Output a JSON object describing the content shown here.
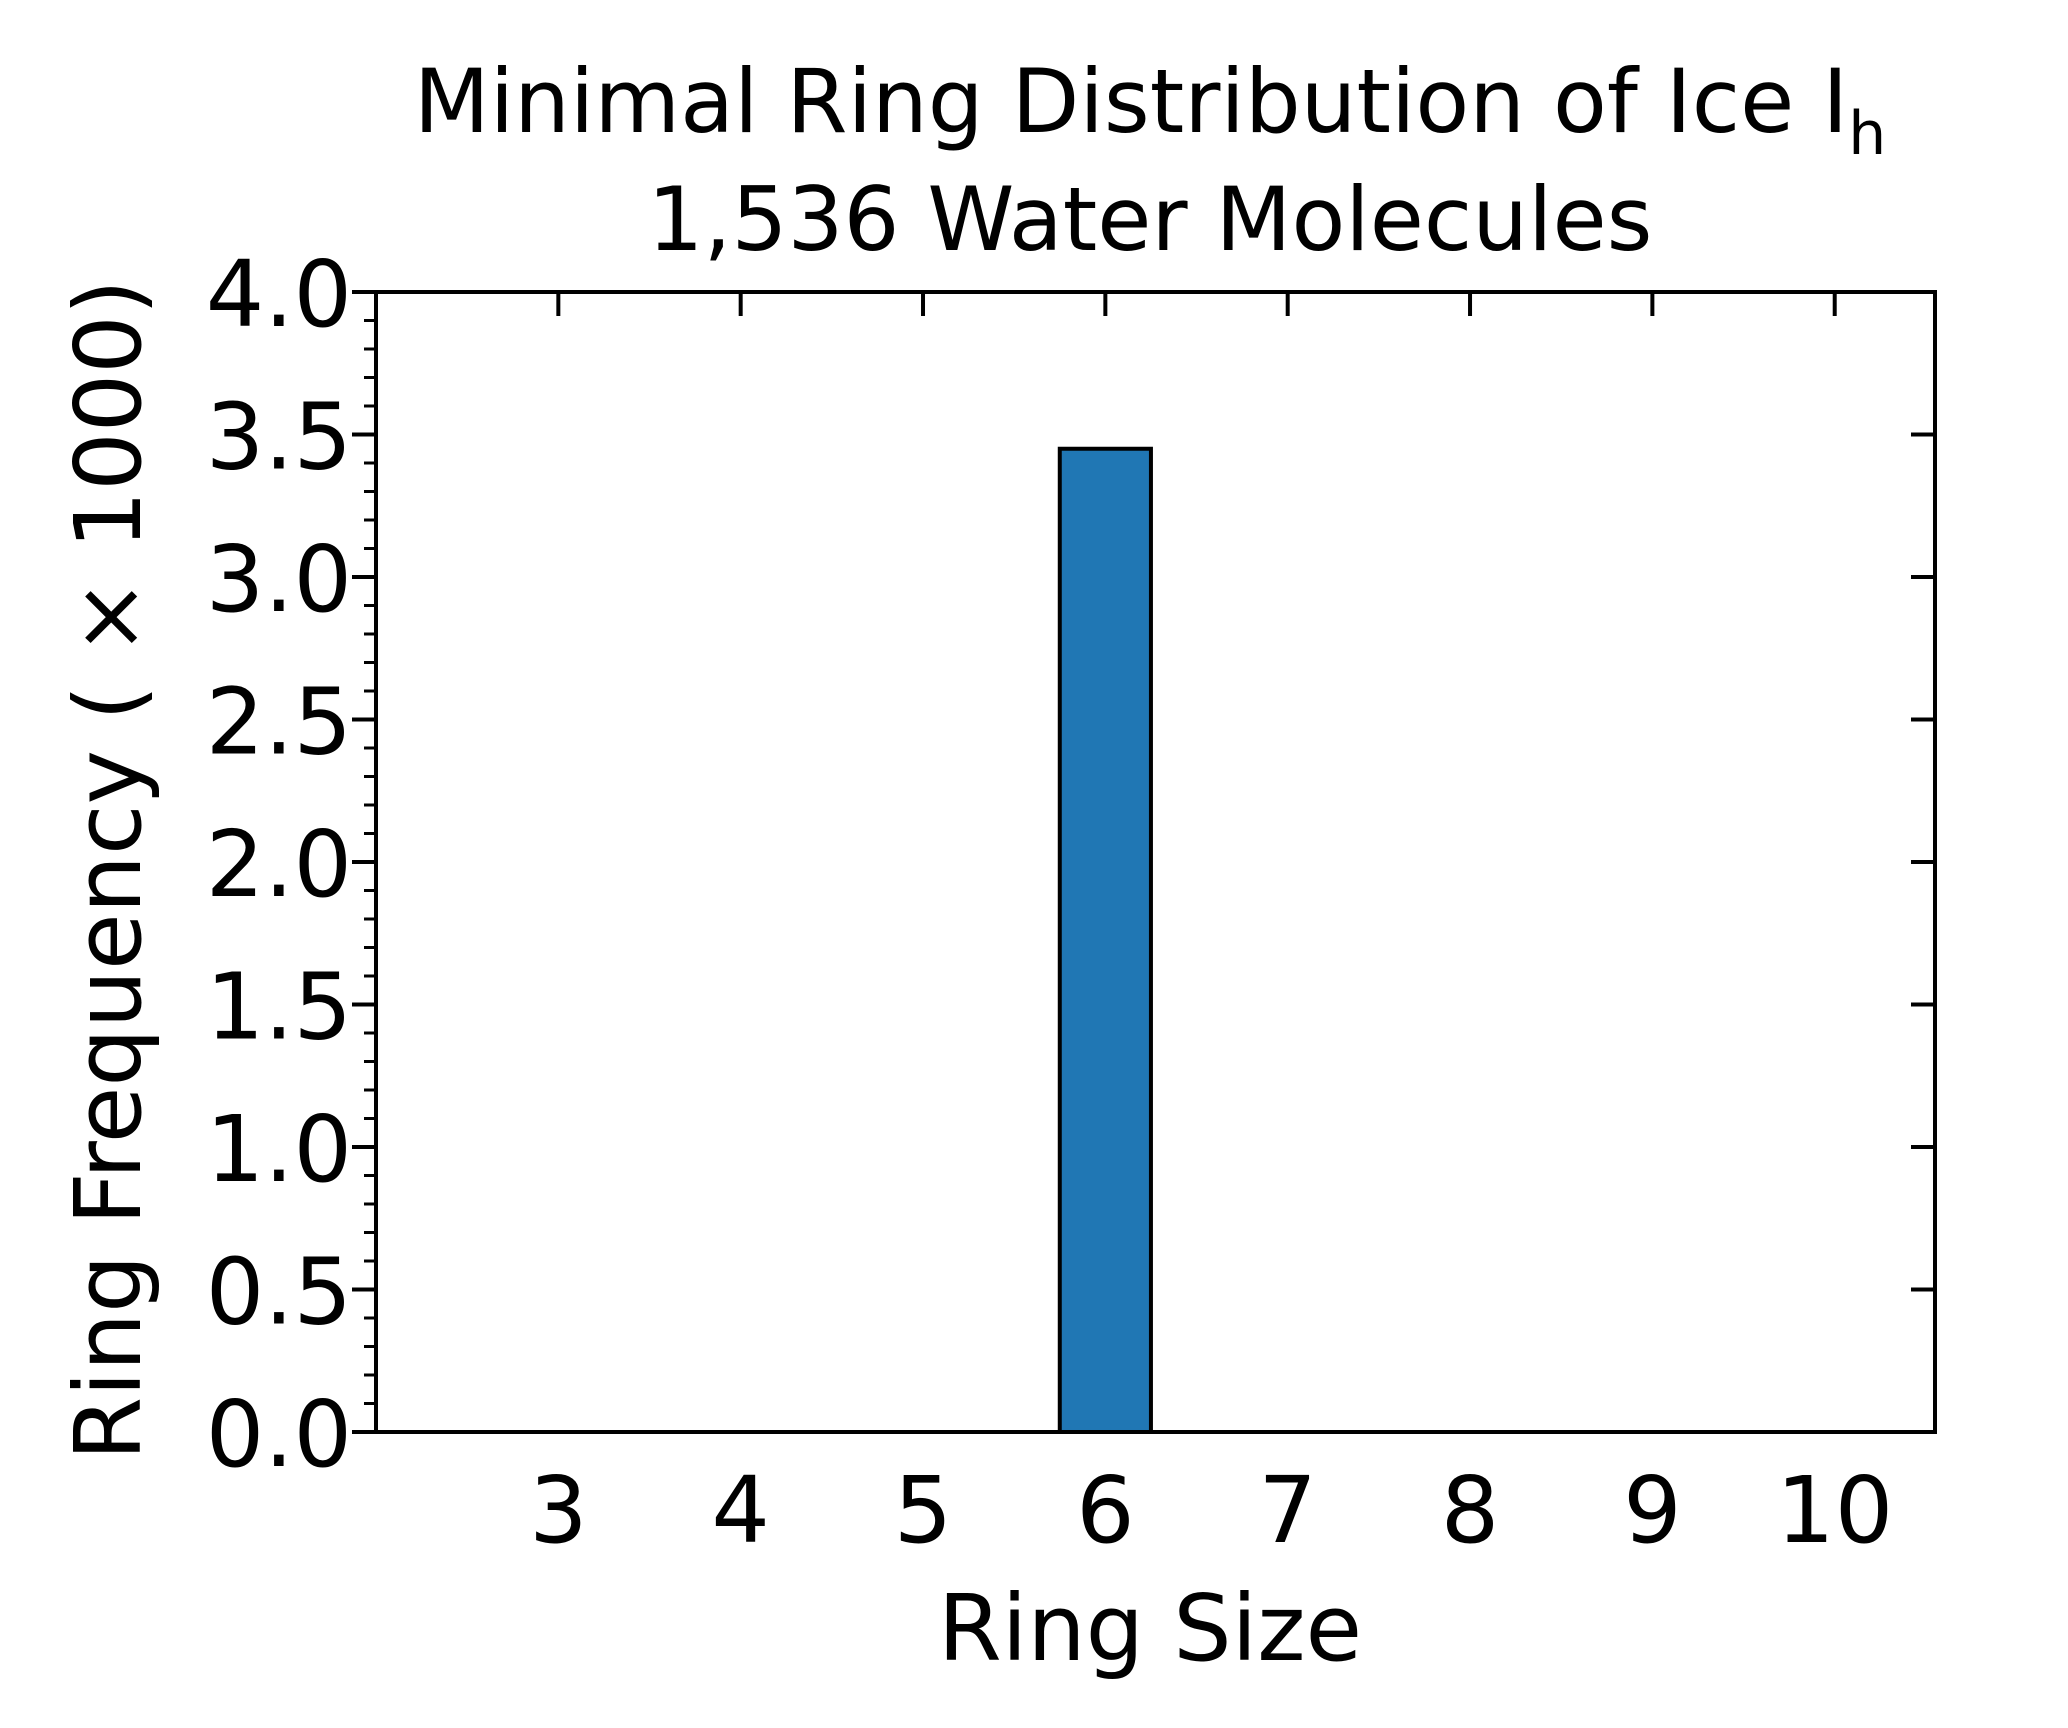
{
  "chart_data": {
    "type": "bar",
    "title": {
      "main": "Minimal Ring Distribution of Ice I",
      "subscript": "h",
      "line2": "1,536 Water Molecules"
    },
    "xlabel": "Ring Size",
    "ylabel": "Ring Frequency ( × 1000)",
    "categories": [
      3,
      4,
      5,
      6,
      7,
      8,
      9,
      10
    ],
    "values": [
      0,
      0,
      0,
      3.45,
      0,
      0,
      0,
      0
    ],
    "xlim": [
      2,
      10.55
    ],
    "ylim": [
      0,
      4.0
    ],
    "yticks": [
      "0.0",
      "0.5",
      "1.0",
      "1.5",
      "2.0",
      "2.5",
      "3.0",
      "3.5",
      "4.0"
    ],
    "xticks": [
      "3",
      "4",
      "5",
      "6",
      "7",
      "8",
      "9",
      "10"
    ],
    "bar_color": "#2077b4",
    "edge_color": "#000000",
    "grid": false,
    "legend": "none"
  }
}
